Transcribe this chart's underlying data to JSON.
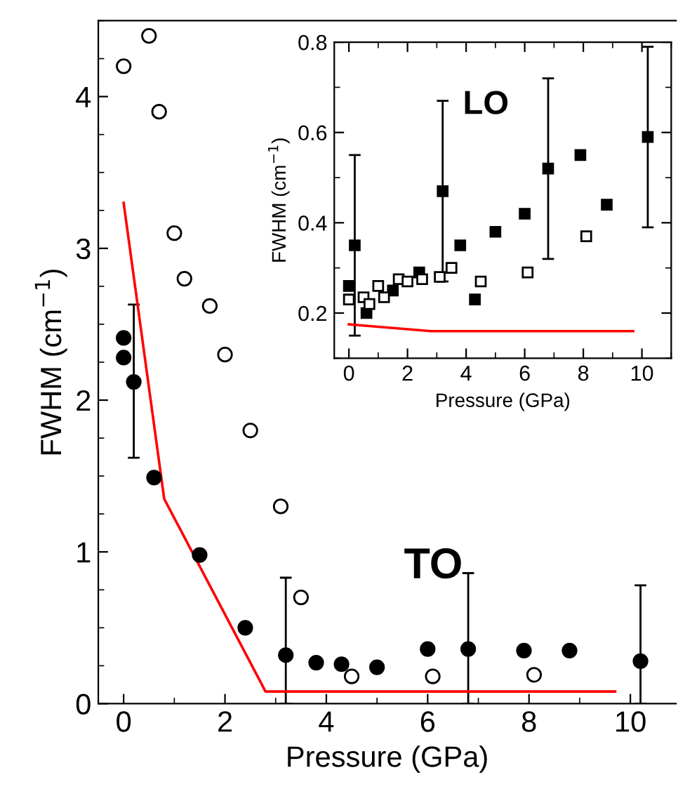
{
  "chart_data": [
    {
      "type": "scatter",
      "xlabel": "Pressure (GPa)",
      "ylabel": "FWHM (cm$^{−1}$)",
      "xlim": [
        -0.5,
        10.9
      ],
      "ylim": [
        0,
        4.5
      ],
      "xticks": [
        0,
        2,
        4,
        6,
        8,
        10
      ],
      "yticks": [
        0,
        1,
        2,
        3,
        4
      ],
      "grid": false,
      "legend": false,
      "annotations": [
        "TO"
      ],
      "series": [
        {
          "color": "#000000",
          "marker": "circle",
          "x": [
            0,
            0,
            0.2,
            0.6,
            1.5,
            2.4,
            3.2,
            3.8,
            4.3,
            5.0,
            6.0,
            6.8,
            7.9,
            8.8,
            10.2
          ],
          "values": [
            2.41,
            2.28,
            2.12,
            1.49,
            0.98,
            0.5,
            0.32,
            0.27,
            0.26,
            0.24,
            0.36,
            0.36,
            0.35,
            0.35,
            0.28
          ],
          "errors": [
            null,
            null,
            [
              1.62,
              2.63
            ],
            null,
            null,
            null,
            [
              0,
              0.83
            ],
            null,
            null,
            null,
            null,
            [
              0,
              0.86
            ],
            null,
            null,
            [
              0,
              0.78
            ]
          ]
        },
        {
          "color": "#ffffff",
          "marker": "circle",
          "x": [
            0,
            0.5,
            0.7,
            1.0,
            1.2,
            1.7,
            2.0,
            2.5,
            3.1,
            3.5,
            4.5,
            6.1,
            8.1
          ],
          "values": [
            4.2,
            4.4,
            3.9,
            3.1,
            2.8,
            2.62,
            2.3,
            1.8,
            1.3,
            0.7,
            0.18,
            0.18,
            0.19
          ]
        },
        {
          "type": "line",
          "color": "#ff0000",
          "marker": "none",
          "x": [
            0,
            0.8,
            2.8,
            9.7
          ],
          "values": [
            3.3,
            1.35,
            0.08,
            0.08
          ]
        }
      ]
    },
    {
      "type": "scatter",
      "xlabel": "Pressure (GPa)",
      "ylabel": "FWHM (cm$^{−1}$)",
      "xlim": [
        -0.5,
        11
      ],
      "ylim": [
        0.1,
        0.8
      ],
      "xticks": [
        0,
        2,
        4,
        6,
        8,
        10
      ],
      "yticks": [
        0.2,
        0.4,
        0.6,
        0.8
      ],
      "grid": false,
      "legend": false,
      "annotations": [
        "LO"
      ],
      "series": [
        {
          "color": "#000000",
          "marker": "square",
          "x": [
            0,
            0.2,
            0.6,
            1.5,
            2.4,
            3.2,
            3.8,
            4.3,
            5.0,
            6.0,
            6.8,
            7.9,
            8.8,
            10.2
          ],
          "values": [
            0.26,
            0.35,
            0.2,
            0.25,
            0.29,
            0.47,
            0.35,
            0.23,
            0.38,
            0.42,
            0.52,
            0.55,
            0.44,
            0.59
          ],
          "errors": [
            null,
            [
              0.15,
              0.55
            ],
            null,
            null,
            null,
            [
              0.27,
              0.67
            ],
            null,
            null,
            null,
            null,
            [
              0.32,
              0.72
            ],
            null,
            null,
            [
              0.39,
              0.79
            ]
          ]
        },
        {
          "color": "#ffffff",
          "marker": "square",
          "x": [
            0,
            0.5,
            0.7,
            1.0,
            1.2,
            1.7,
            2.0,
            2.5,
            3.1,
            3.5,
            4.5,
            6.1,
            8.1
          ],
          "values": [
            0.23,
            0.235,
            0.22,
            0.26,
            0.235,
            0.275,
            0.27,
            0.275,
            0.28,
            0.3,
            0.27,
            0.29,
            0.37
          ]
        },
        {
          "type": "line",
          "color": "#ff0000",
          "marker": "none",
          "x": [
            0,
            2.8,
            9.7
          ],
          "values": [
            0.175,
            0.16,
            0.16
          ]
        }
      ]
    }
  ]
}
